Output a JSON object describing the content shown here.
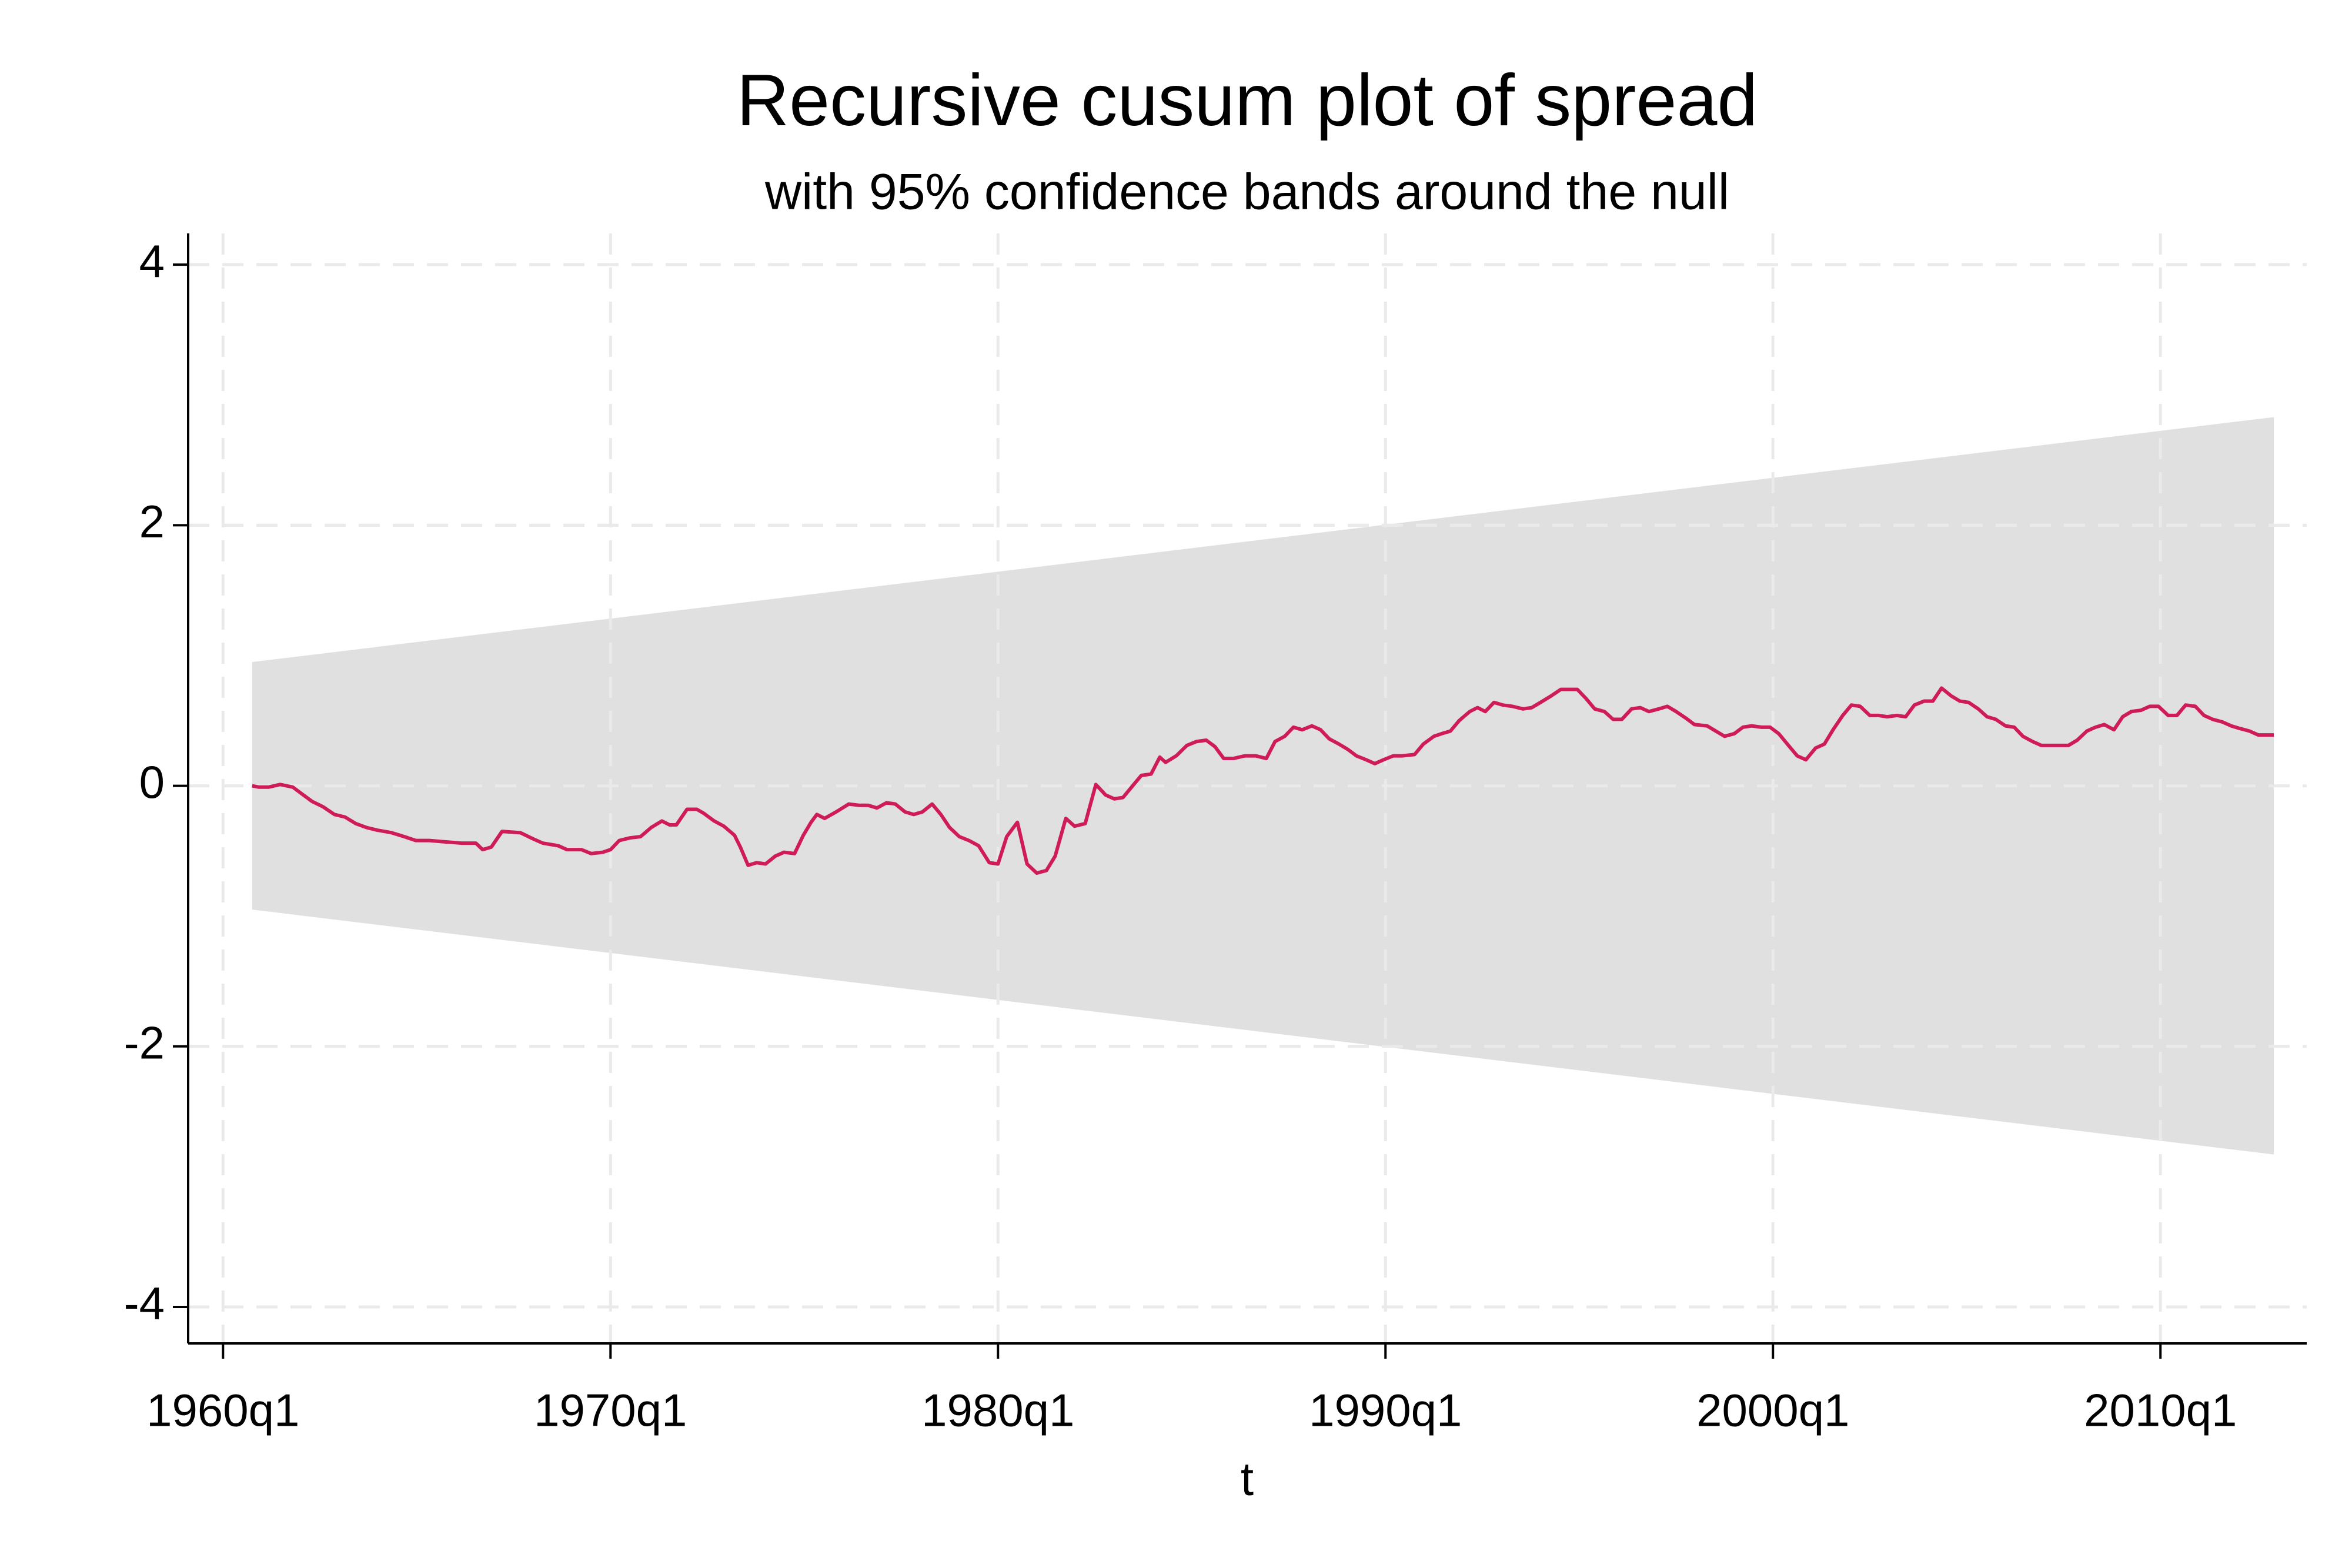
{
  "chart_data": {
    "type": "line",
    "title": "Recursive cusum plot of spread",
    "subtitle": "with 95% confidence bands around the null",
    "x_label": "t",
    "xlim": [
      -3.6,
      215.1
    ],
    "xticks": [
      {
        "value": 0,
        "label": "1960q1"
      },
      {
        "value": 40,
        "label": "1970q1"
      },
      {
        "value": 80,
        "label": "1980q1"
      },
      {
        "value": 120,
        "label": "1990q1"
      },
      {
        "value": 160,
        "label": "2000q1"
      },
      {
        "value": 200,
        "label": "2010q1"
      }
    ],
    "ylim": [
      -4.28,
      4.24
    ],
    "yticks": [
      -4,
      -2,
      0,
      2,
      4
    ],
    "grid": true,
    "band": {
      "x": [
        3.0,
        211.7
      ],
      "upper": [
        0.95,
        2.83
      ],
      "lower": [
        -0.95,
        -2.83
      ],
      "color": "#e0e0e0"
    },
    "x": [
      3.0,
      3.7,
      4.7,
      5.9,
      7.2,
      8.1,
      9.2,
      10.3,
      11.5,
      12.6,
      13.7,
      14.8,
      15.9,
      17.4,
      18.7,
      19.9,
      21.3,
      22.9,
      24.6,
      26.1,
      26.8,
      27.7,
      28.8,
      30.7,
      31.8,
      33.0,
      34.6,
      35.5,
      37.0,
      38.0,
      39.2,
      40.0,
      40.9,
      42.0,
      43.1,
      44.2,
      45.3,
      46.1,
      46.8,
      47.9,
      48.9,
      49.6,
      50.7,
      51.7,
      52.8,
      53.4,
      54.2,
      55.1,
      56.0,
      57.0,
      57.9,
      59.0,
      59.9,
      60.7,
      61.3,
      62.1,
      63.3,
      64.6,
      65.7,
      66.6,
      67.5,
      68.5,
      69.4,
      70.4,
      71.3,
      72.2,
      73.2,
      74.1,
      75.0,
      76.0,
      77.0,
      78.0,
      79.1,
      80.0,
      80.9,
      82.0,
      83.0,
      84.0,
      85.0,
      85.9,
      87.0,
      87.9,
      89.0,
      90.1,
      91.1,
      92.0,
      92.9,
      93.9,
      94.8,
      95.8,
      96.7,
      97.3,
      98.4,
      99.5,
      100.5,
      101.5,
      102.4,
      103.3,
      104.3,
      105.5,
      106.6,
      107.7,
      108.6,
      109.6,
      110.5,
      111.4,
      112.4,
      113.3,
      114.2,
      115.2,
      116.1,
      117.0,
      118.0,
      118.9,
      119.8,
      120.8,
      121.7,
      123.0,
      123.9,
      125.0,
      125.8,
      126.7,
      127.6,
      128.7,
      129.5,
      130.3,
      131.2,
      132.1,
      133.1,
      134.2,
      135.1,
      136.0,
      137.1,
      138.1,
      138.8,
      139.8,
      140.7,
      141.6,
      142.6,
      143.5,
      144.4,
      145.4,
      146.3,
      147.2,
      148.2,
      149.1,
      150.0,
      151.0,
      151.9,
      153.2,
      154.1,
      155.0,
      156.0,
      156.9,
      157.8,
      158.8,
      159.7,
      160.6,
      161.6,
      162.5,
      163.4,
      164.4,
      165.3,
      166.2,
      167.2,
      168.1,
      169.0,
      170.0,
      170.9,
      171.8,
      172.8,
      173.7,
      174.6,
      175.6,
      176.5,
      177.4,
      178.4,
      179.3,
      180.2,
      181.2,
      182.1,
      183.0,
      184.0,
      184.9,
      185.8,
      186.8,
      187.7,
      188.6,
      189.6,
      190.5,
      191.4,
      192.4,
      193.3,
      194.2,
      195.2,
      196.1,
      197.0,
      198.0,
      198.9,
      199.8,
      200.8,
      201.7,
      202.6,
      203.6,
      204.5,
      205.4,
      206.4,
      207.3,
      208.2,
      209.2,
      210.1,
      211.7
    ],
    "series": [
      {
        "color": "#cf1b58",
        "values": [
          0,
          -0.01,
          -0.01,
          0.01,
          -0.01,
          -0.06,
          -0.12,
          -0.16,
          -0.22,
          -0.24,
          -0.29,
          -0.32,
          -0.34,
          -0.36,
          -0.39,
          -0.42,
          -0.42,
          -0.43,
          -0.44,
          -0.44,
          -0.49,
          -0.47,
          -0.35,
          -0.36,
          -0.4,
          -0.44,
          -0.46,
          -0.49,
          -0.49,
          -0.52,
          -0.51,
          -0.49,
          -0.42,
          -0.4,
          -0.39,
          -0.32,
          -0.27,
          -0.3,
          -0.3,
          -0.18,
          -0.18,
          -0.21,
          -0.27,
          -0.31,
          -0.38,
          -0.47,
          -0.61,
          -0.59,
          -0.6,
          -0.54,
          -0.51,
          -0.52,
          -0.38,
          -0.28,
          -0.22,
          -0.25,
          -0.2,
          -0.14,
          -0.15,
          -0.15,
          -0.17,
          -0.13,
          -0.14,
          -0.2,
          -0.22,
          -0.2,
          -0.14,
          -0.22,
          -0.32,
          -0.39,
          -0.42,
          -0.46,
          -0.59,
          -0.6,
          -0.39,
          -0.28,
          -0.6,
          -0.67,
          -0.65,
          -0.54,
          -0.25,
          -0.31,
          -0.29,
          0.01,
          -0.07,
          -0.1,
          -0.09,
          0,
          0.08,
          0.09,
          0.22,
          0.18,
          0.23,
          0.31,
          0.34,
          0.35,
          0.3,
          0.21,
          0.21,
          0.23,
          0.23,
          0.21,
          0.34,
          0.38,
          0.45,
          0.43,
          0.46,
          0.43,
          0.36,
          0.32,
          0.28,
          0.23,
          0.2,
          0.17,
          0.2,
          0.23,
          0.23,
          0.24,
          0.32,
          0.38,
          0.4,
          0.42,
          0.5,
          0.57,
          0.6,
          0.57,
          0.64,
          0.62,
          0.61,
          0.59,
          0.6,
          0.64,
          0.69,
          0.74,
          0.74,
          0.74,
          0.67,
          0.59,
          0.57,
          0.51,
          0.51,
          0.59,
          0.6,
          0.57,
          0.59,
          0.61,
          0.57,
          0.52,
          0.47,
          0.46,
          0.42,
          0.38,
          0.4,
          0.45,
          0.46,
          0.45,
          0.45,
          0.4,
          0.31,
          0.23,
          0.2,
          0.29,
          0.32,
          0.43,
          0.54,
          0.62,
          0.61,
          0.54,
          0.54,
          0.53,
          0.54,
          0.53,
          0.62,
          0.65,
          0.65,
          0.75,
          0.69,
          0.65,
          0.64,
          0.59,
          0.53,
          0.51,
          0.46,
          0.45,
          0.38,
          0.34,
          0.31,
          0.31,
          0.31,
          0.31,
          0.35,
          0.42,
          0.45,
          0.47,
          0.43,
          0.53,
          0.57,
          0.58,
          0.61,
          0.61,
          0.54,
          0.54,
          0.62,
          0.61,
          0.54,
          0.51,
          0.49,
          0.46,
          0.44,
          0.42,
          0.39,
          0.39
        ]
      }
    ]
  }
}
